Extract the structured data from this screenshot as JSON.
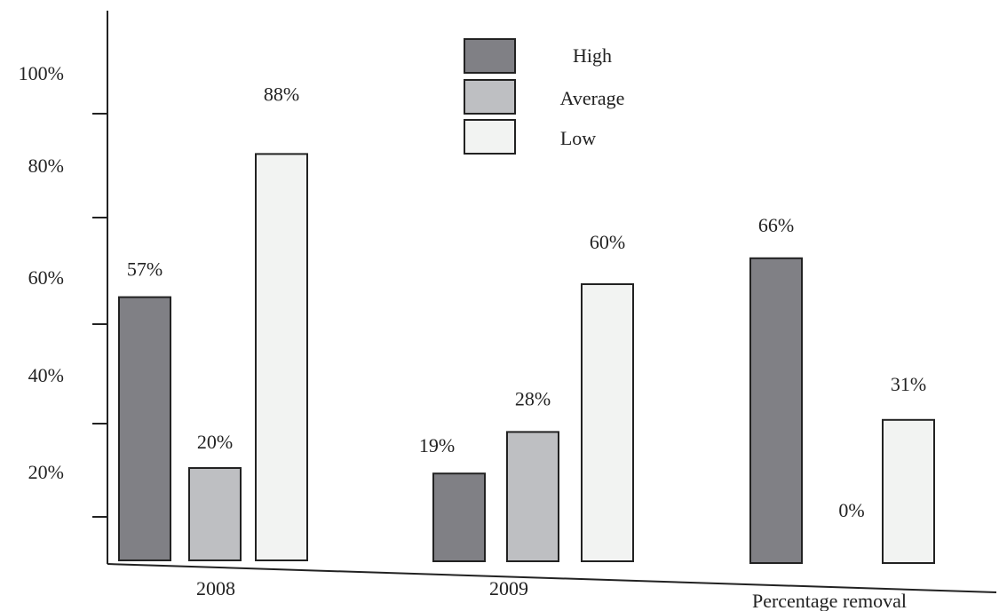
{
  "chart_data": {
    "type": "bar",
    "categories": [
      "2008",
      "2009",
      "Percentage removal"
    ],
    "series": [
      {
        "name": "High",
        "values": [
          57,
          19,
          66
        ],
        "color": "#808085"
      },
      {
        "name": "Average",
        "values": [
          20,
          28,
          0
        ],
        "color": "#bebfc2"
      },
      {
        "name": "Low",
        "values": [
          88,
          60,
          31
        ],
        "color": "#f2f3f2"
      }
    ],
    "data_labels": [
      [
        "57%",
        "19%",
        "66%"
      ],
      [
        "20%",
        "28%",
        "0%"
      ],
      [
        "88%",
        "60%",
        "31%"
      ]
    ],
    "y_tick_labels": [
      "20%",
      "40%",
      "60%",
      "80%",
      "100%"
    ],
    "legend_position": "top-center",
    "grid": false
  }
}
